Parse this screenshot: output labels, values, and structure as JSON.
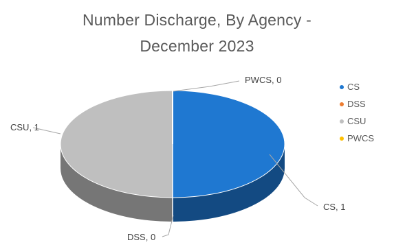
{
  "chart_data": {
    "type": "pie",
    "title_lines": [
      "Number Discharge, By Agency -",
      "December 2023"
    ],
    "categories": [
      "CS",
      "DSS",
      "CSU",
      "PWCS"
    ],
    "values": [
      1,
      0,
      1,
      0
    ],
    "data_labels": [
      "CS, 1",
      "DSS, 0",
      "CSU, 1",
      "PWCS, 0"
    ],
    "colors": {
      "CS": "#1f78d1",
      "DSS": "#ed7d31",
      "CSU": "#bfbfbf",
      "PWCS": "#ffc000"
    },
    "legend_position": "right",
    "style": "3d"
  }
}
